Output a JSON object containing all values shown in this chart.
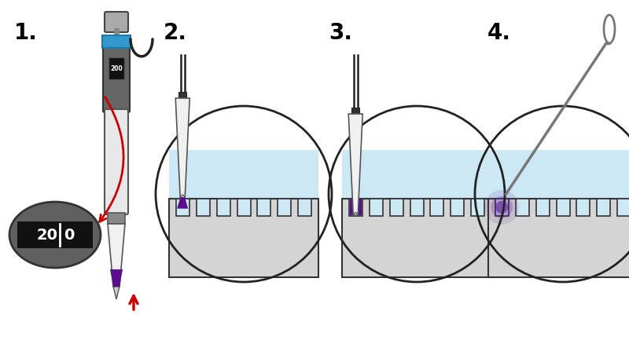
{
  "bg_color": "#ffffff",
  "step_labels": [
    "1.",
    "2.",
    "3.",
    "4."
  ],
  "gel_color": "#d4d4d4",
  "water_color": "#cce8f4",
  "sample_color": "#5b0f8f",
  "arrow_color": "#cc0000",
  "blue_band_color": "#3399cc",
  "dark_gray": "#555555",
  "mid_gray": "#888888",
  "light_gray": "#e8e8e8",
  "label_fontsize": 20,
  "circle_lw": 2.0
}
